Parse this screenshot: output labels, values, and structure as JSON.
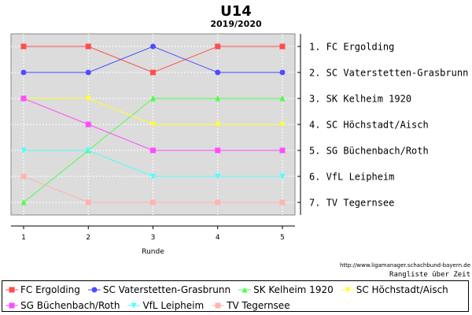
{
  "chart_data": {
    "type": "line",
    "title": "U14",
    "subtitle": "2019/2020",
    "xlabel": "Runde",
    "x": [
      1,
      2,
      3,
      4,
      5
    ],
    "y_categories": [
      "1. FC Ergolding",
      "2. SC Vaterstetten-Grasbrunn",
      "3. SK Kelheim 1920",
      "4. SC Höchstadt/Aisch",
      "5. SG Büchenbach/Roth",
      "6. VfL Leipheim",
      "7. TV Tegernsee"
    ],
    "ylim": [
      1,
      7
    ],
    "y_inverted": true,
    "grid": true,
    "legend_position": "bottom",
    "series": [
      {
        "name": "FC Ergolding",
        "color": "#ff4d4d",
        "marker": "square",
        "values": [
          1,
          1,
          2,
          1,
          1
        ]
      },
      {
        "name": "SC Vaterstetten-Grasbrunn",
        "color": "#4d4dff",
        "marker": "circle",
        "values": [
          2,
          2,
          1,
          2,
          2
        ]
      },
      {
        "name": "SK Kelheim 1920",
        "color": "#4dff4d",
        "marker": "triangle-up",
        "values": [
          7,
          5,
          3,
          3,
          3
        ]
      },
      {
        "name": "SC Höchstadt/Aisch",
        "color": "#ffff33",
        "marker": "triangle-down",
        "values": [
          3,
          3,
          4,
          4,
          4
        ]
      },
      {
        "name": "SG Büchenbach/Roth",
        "color": "#ff4dff",
        "marker": "square",
        "values": [
          3,
          4,
          5,
          5,
          5
        ]
      },
      {
        "name": "VfL Leipheim",
        "color": "#4dffff",
        "marker": "triangle-down",
        "values": [
          5,
          5,
          6,
          6,
          6
        ]
      },
      {
        "name": "TV Tegernsee",
        "color": "#ffb3b3",
        "marker": "square",
        "values": [
          6,
          7,
          7,
          7,
          7
        ]
      }
    ]
  },
  "source_url": "http://www.ligamanager.schachbund-bayern.de",
  "caption": "Rangliste über Zeit"
}
